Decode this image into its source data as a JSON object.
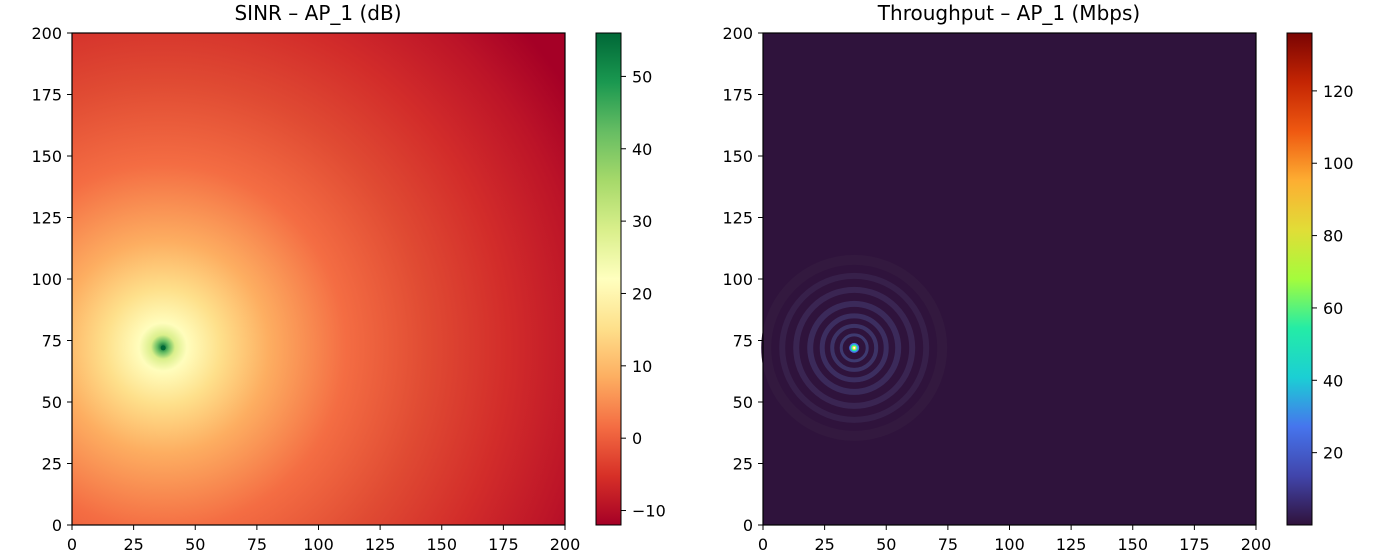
{
  "chart_data": [
    {
      "type": "heatmap",
      "title": "SINR – AP_1 (dB)",
      "xlabel": "",
      "ylabel": "",
      "xlim": [
        0,
        200
      ],
      "ylim": [
        0,
        200
      ],
      "xticks": [
        "0",
        "25",
        "50",
        "75",
        "100",
        "125",
        "150",
        "175",
        "200"
      ],
      "yticks": [
        "0",
        "25",
        "50",
        "75",
        "100",
        "125",
        "150",
        "175",
        "200"
      ],
      "colormap": "RdYlGn",
      "colorbar": {
        "range": [
          -12,
          56
        ],
        "ticks": [
          "−10",
          "0",
          "10",
          "20",
          "30",
          "40",
          "50"
        ]
      },
      "hotspot": {
        "x": 37,
        "y": 72,
        "peak": 56
      },
      "far_corner_value": -12,
      "grid": false
    },
    {
      "type": "heatmap",
      "title": "Throughput – AP_1 (Mbps)",
      "xlabel": "",
      "ylabel": "",
      "xlim": [
        0,
        200
      ],
      "ylim": [
        0,
        200
      ],
      "xticks": [
        "0",
        "25",
        "50",
        "75",
        "100",
        "125",
        "150",
        "175",
        "200"
      ],
      "yticks": [
        "0",
        "25",
        "50",
        "75",
        "100",
        "125",
        "150",
        "175",
        "200"
      ],
      "colormap": "turbo",
      "colorbar": {
        "range": [
          0,
          136
        ],
        "ticks": [
          "20",
          "40",
          "60",
          "80",
          "100",
          "120"
        ]
      },
      "hotspot": {
        "x": 37,
        "y": 72,
        "peak": 136
      },
      "background_value": 0,
      "grid": false
    }
  ]
}
